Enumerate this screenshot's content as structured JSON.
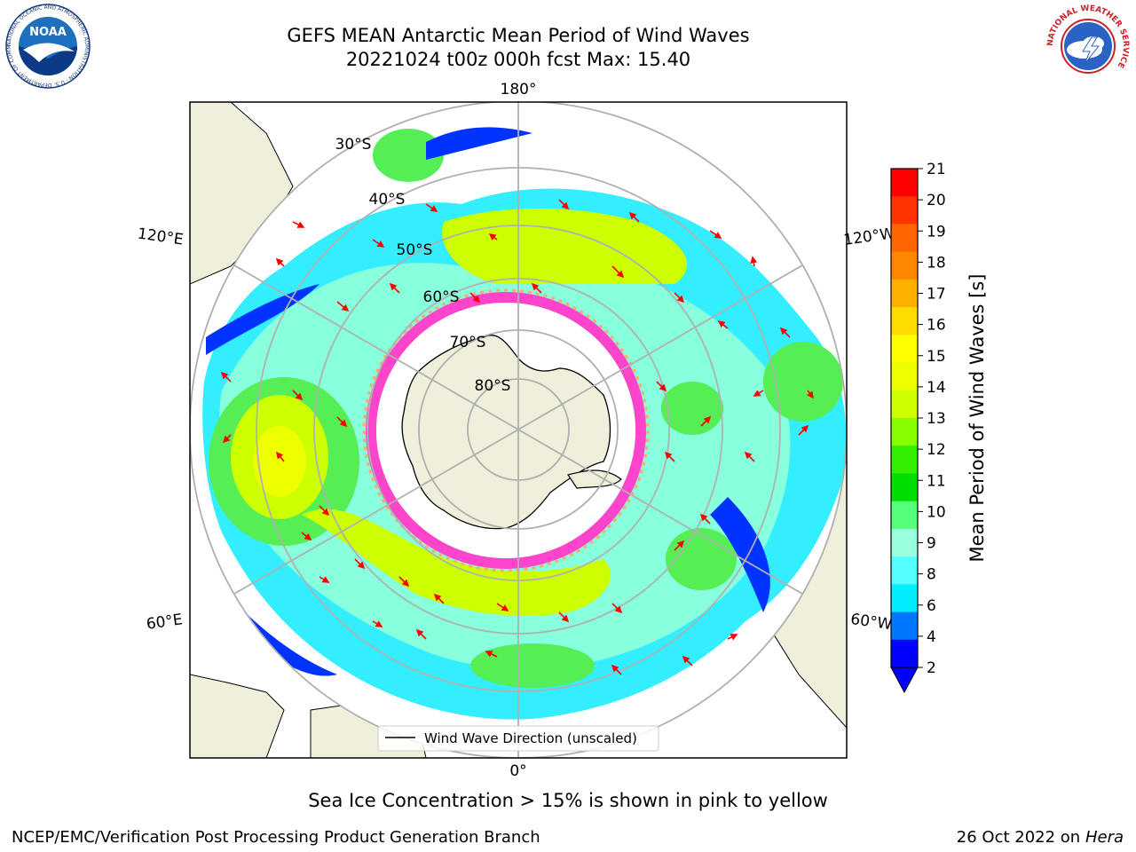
{
  "header": {
    "title_line1": "GEFS MEAN Antarctic Mean Period of Wind Waves",
    "title_line2": "20221024 t00z 000h fcst   Max: 15.40"
  },
  "logos": {
    "noaa_text": "NOAA",
    "noaa_ring_text": "NATIONAL OCEANIC AND ATMOSPHERIC ADMINISTRATION · U.S. DEPARTMENT OF COMMERCE",
    "nws_ring_text": "NATIONAL WEATHER SERVICE"
  },
  "map": {
    "longitude_labels": [
      "180°",
      "120°E",
      "120°W",
      "60°E",
      "60°W",
      "0°"
    ],
    "latitude_labels": [
      "30°S",
      "40°S",
      "50°S",
      "60°S",
      "70°S",
      "80°S"
    ],
    "legend_label": "Wind Wave Direction (unscaled)",
    "ice_color": "#ff44cc"
  },
  "colorbar": {
    "label": "Mean Period of Wind Waves [s]",
    "ticks": [
      "21",
      "20",
      "19",
      "18",
      "17",
      "16",
      "15",
      "14",
      "13",
      "12",
      "11",
      "10",
      "9",
      "8",
      "6",
      "4",
      "2"
    ],
    "colors": [
      "#ff0000",
      "#ff3300",
      "#ff6600",
      "#ff8800",
      "#ffb000",
      "#ffdd00",
      "#ffff00",
      "#eeff00",
      "#ccff00",
      "#88ff00",
      "#33ee00",
      "#00dd00",
      "#55ff77",
      "#99ffdd",
      "#55ffff",
      "#00eeff",
      "#0077ff",
      "#0000ff"
    ],
    "underflow_color": "#0000ff"
  },
  "caption": "Sea Ice Concentration > 15% is shown in pink to yellow",
  "footer": {
    "left": "NCEP/EMC/Verification Post Processing Product Generation Branch",
    "right_date": "26 Oct 2022 on",
    "right_host": "Hera"
  }
}
